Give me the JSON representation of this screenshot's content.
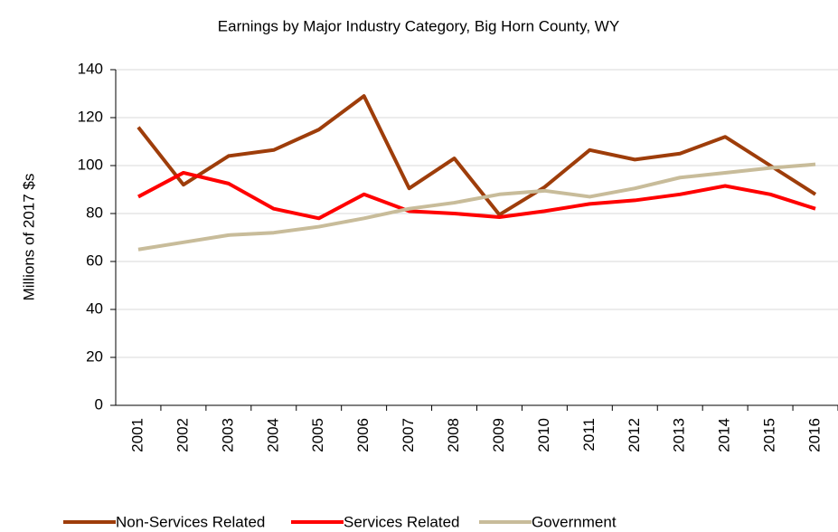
{
  "chart_data": {
    "type": "line",
    "title": "Earnings by Major Industry Category, Big Horn County, WY",
    "y_label": "Millions of 2017 $s",
    "categories": [
      "2001",
      "2002",
      "2003",
      "2004",
      "2005",
      "2006",
      "2007",
      "2008",
      "2009",
      "2010",
      "2011",
      "2012",
      "2013",
      "2014",
      "2015",
      "2016"
    ],
    "series": [
      {
        "name": "Non-Services Related",
        "color": "#9e3d0a",
        "values": [
          116,
          92,
          104,
          106.5,
          115,
          129,
          90.5,
          103,
          79.5,
          91,
          106.5,
          102.5,
          105,
          112,
          100,
          88
        ]
      },
      {
        "name": "Services Related",
        "color": "#ff0000",
        "values": [
          87,
          97,
          92.5,
          82,
          78,
          88,
          81,
          80,
          78.5,
          81,
          84,
          85.5,
          88,
          91.5,
          88,
          82
        ]
      },
      {
        "name": "Government",
        "color": "#c8bc9a",
        "values": [
          65,
          68,
          71,
          72,
          74.5,
          78,
          82,
          84.5,
          88,
          89.5,
          87,
          90.5,
          95,
          97,
          99,
          100.5
        ]
      }
    ],
    "ylim": [
      0,
      140
    ],
    "yticks": [
      0,
      20,
      40,
      60,
      80,
      100,
      120,
      140
    ],
    "grid": true,
    "legend": "bottom"
  }
}
